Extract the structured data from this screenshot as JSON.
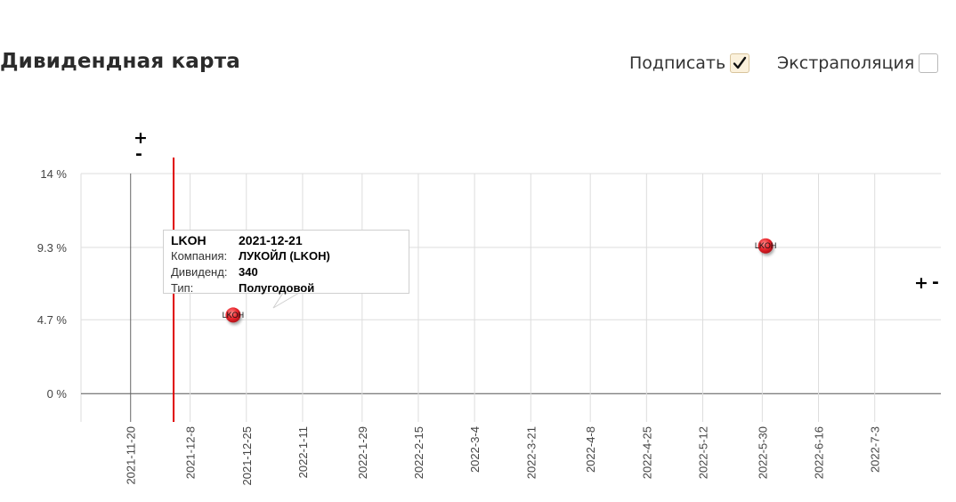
{
  "header": {
    "title": "Дивидендная карта",
    "sign_label": "Подписать",
    "sign_checked": true,
    "extrapolation_label": "Экстраполяция",
    "extrapolation_checked": false
  },
  "zoom": {
    "plus": "+",
    "minus": "-"
  },
  "tooltip": {
    "ticker": "LKOH",
    "date": "2021-12-21",
    "company_label": "Компания:",
    "company": "ЛУКОЙЛ (LKOH)",
    "dividend_label": "Дивиденд:",
    "dividend": "340",
    "type_label": "Тип:",
    "type": "Полугодовой"
  },
  "chart_data": {
    "type": "scatter",
    "y_tick_labels": [
      "0 %",
      "4.7 %",
      "9.3 %",
      "14 %"
    ],
    "y_ticks": [
      0,
      4.7,
      9.3,
      14
    ],
    "ylim": [
      -1.8,
      14
    ],
    "xlim": [
      "2021-11-05",
      "2022-07-23"
    ],
    "x_ticks": [
      "2021-11-20",
      "2021-12-08",
      "2021-12-25",
      "2022-01-11",
      "2022-01-29",
      "2022-02-15",
      "2022-03-04",
      "2022-03-21",
      "2022-04-08",
      "2022-04-25",
      "2022-05-12",
      "2022-05-30",
      "2022-06-16",
      "2022-07-03"
    ],
    "x_tick_labels": [
      "2021-11-20",
      "2021-12-8",
      "2021-12-25",
      "2022-1-11",
      "2022-1-29",
      "2022-2-15",
      "2022-3-4",
      "2022-3-21",
      "2022-4-8",
      "2022-4-25",
      "2022-5-12",
      "2022-5-30",
      "2022-6-16",
      "2022-7-3"
    ],
    "grid": true,
    "today_line": "2021-12-03",
    "points": [
      {
        "label": "LKOH",
        "x": "2021-12-21",
        "y": 5.0
      },
      {
        "label": "LKOH",
        "x": "2022-05-31",
        "y": 9.4
      }
    ],
    "colors": {
      "grid": "#dddddd",
      "axis": "#555555",
      "today": "#e00000",
      "point": "#e8232a"
    }
  }
}
